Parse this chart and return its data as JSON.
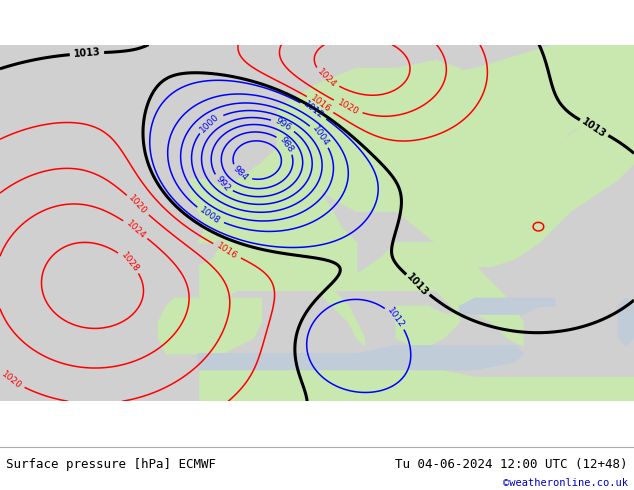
{
  "title_left": "Surface pressure [hPa] ECMWF",
  "title_right": "Tu 04-06-2024 12:00 UTC (12+48)",
  "credit": "©weatheronline.co.uk",
  "credit_color": "#0000cc",
  "figsize": [
    6.34,
    4.9
  ],
  "dpi": 100
}
